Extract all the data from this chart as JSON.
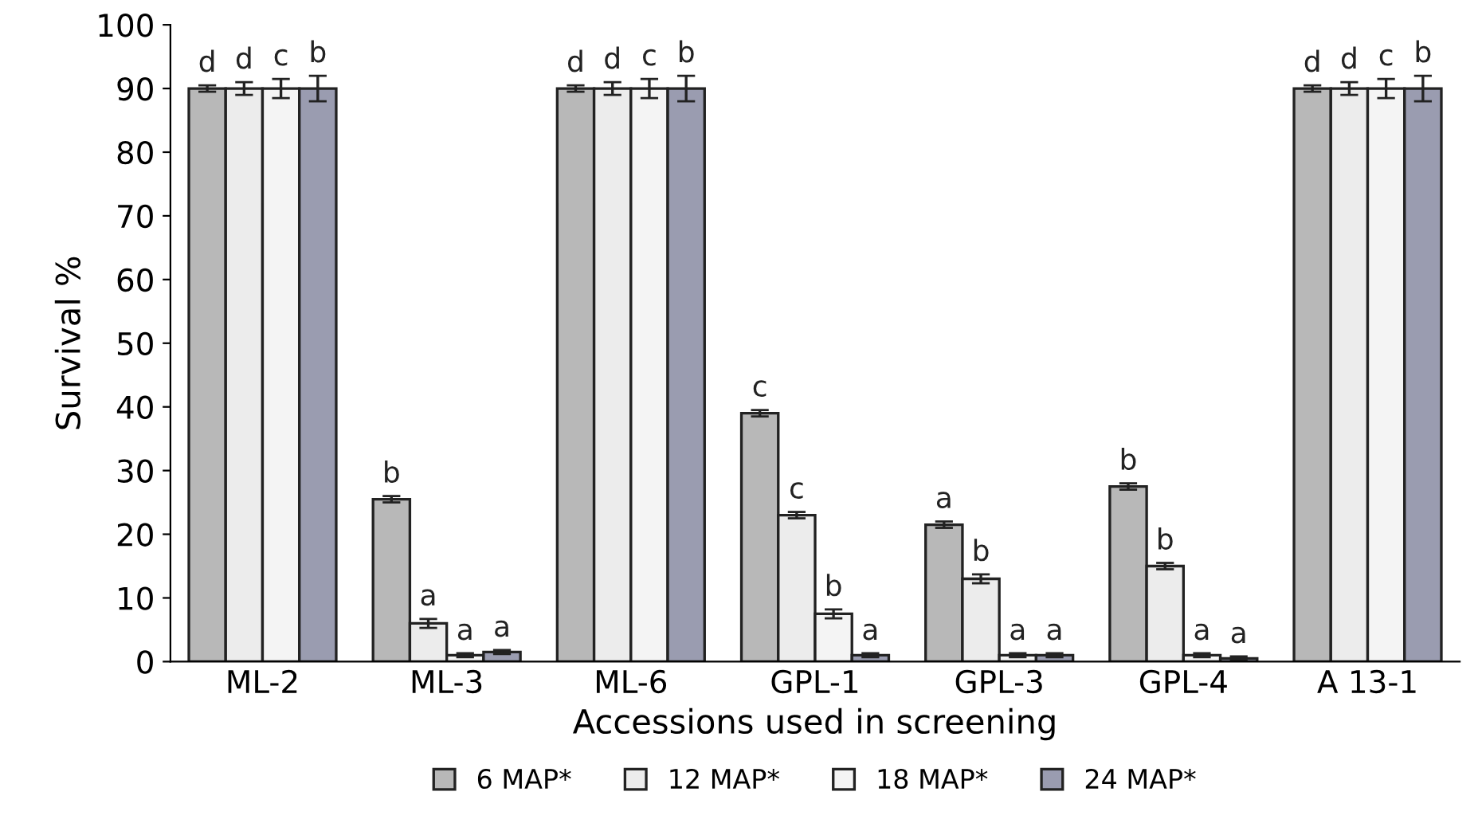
{
  "chart_data": {
    "type": "bar",
    "xlabel": "Accessions used in screening",
    "ylabel": "Survival %",
    "categories": [
      "ML-2",
      "ML-3",
      "ML-6",
      "GPL-1",
      "GPL-3",
      "GPL-4",
      "A 13-1"
    ],
    "series": [
      {
        "name": "6 MAP*",
        "color": "#b8b8b8",
        "values": [
          90,
          25.5,
          90,
          39,
          21.5,
          27.5,
          90
        ],
        "errors": [
          0.5,
          0.5,
          0.5,
          0.5,
          0.5,
          0.5,
          0.5
        ],
        "value_labels": [
          "d",
          "b",
          "d",
          "c",
          "a",
          "b",
          "d"
        ]
      },
      {
        "name": "12 MAP*",
        "color": "#ececec",
        "values": [
          90,
          6,
          90,
          23,
          13,
          15,
          90
        ],
        "errors": [
          1,
          0.7,
          1,
          0.5,
          0.7,
          0.5,
          1
        ],
        "value_labels": [
          "d",
          "a",
          "d",
          "c",
          "b",
          "b",
          "d"
        ]
      },
      {
        "name": "18 MAP*",
        "color": "#f4f4f4",
        "values": [
          90,
          1,
          90,
          7.5,
          1,
          1,
          90
        ],
        "errors": [
          1.5,
          0.3,
          1.5,
          0.7,
          0.3,
          0.3,
          1.5
        ],
        "value_labels": [
          "c",
          "a",
          "c",
          "b",
          "a",
          "a",
          "c"
        ]
      },
      {
        "name": "24 MAP*",
        "color": "#9a9cb0",
        "values": [
          90,
          1.5,
          90,
          1,
          1,
          0.5,
          90
        ],
        "errors": [
          2,
          0.3,
          2,
          0.3,
          0.3,
          0.3,
          2
        ],
        "value_labels": [
          "b",
          "a",
          "b",
          "a",
          "a",
          "a",
          "b"
        ]
      }
    ],
    "ylim": [
      0,
      100
    ],
    "yticks": [
      0,
      10,
      20,
      30,
      40,
      50,
      60,
      70,
      80,
      90,
      100
    ],
    "grid": false,
    "legend": "bottom"
  }
}
